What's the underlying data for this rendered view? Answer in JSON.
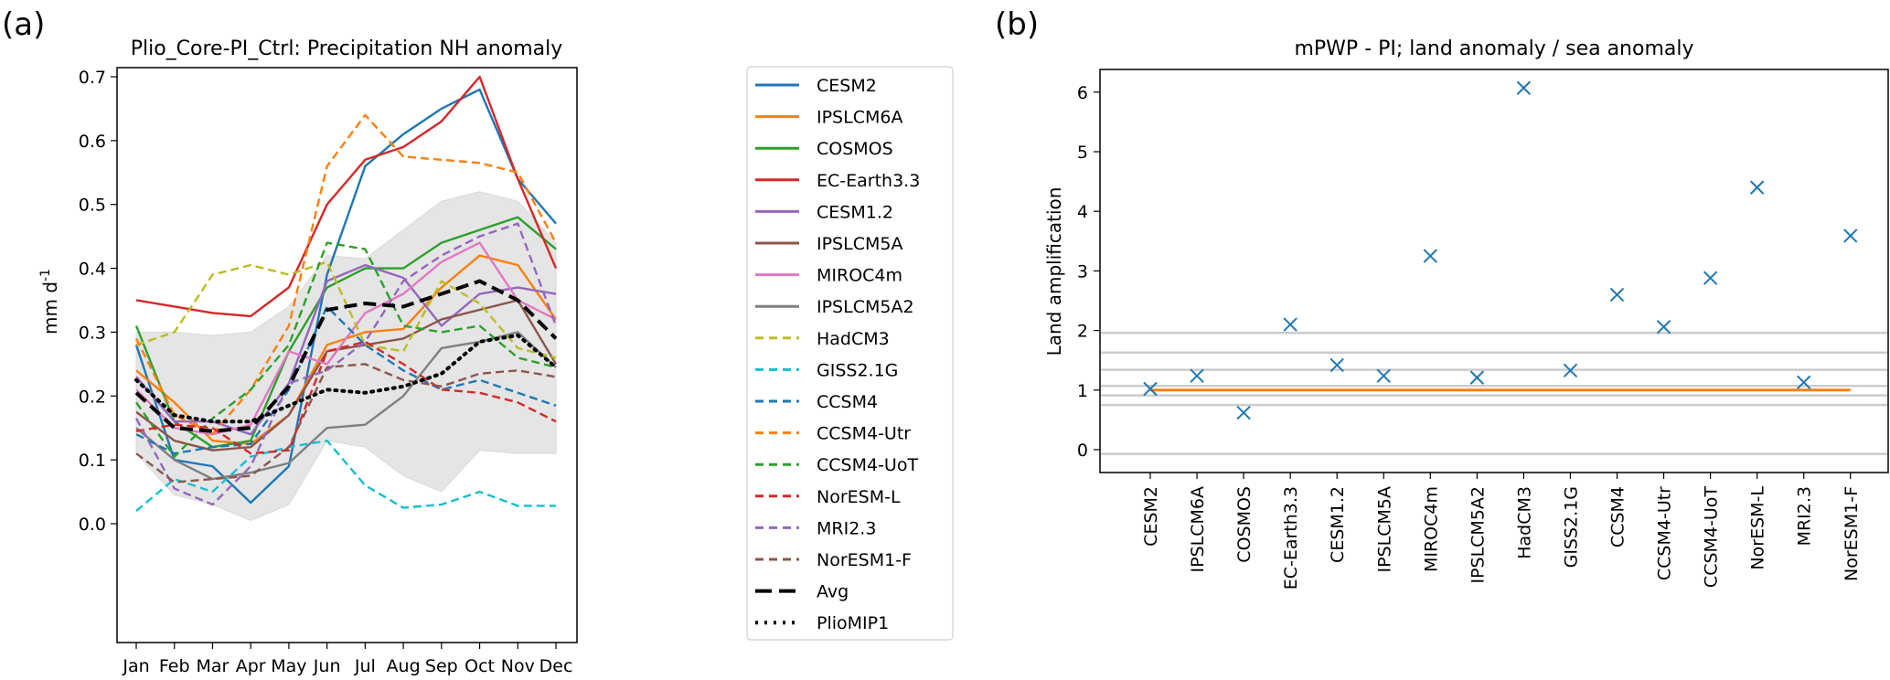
{
  "figure": {
    "panel_a_label": "(a)",
    "panel_b_label": "(b)"
  },
  "chart_data": [
    {
      "type": "line",
      "title": "Plio_Core-PI_Ctrl: Precipitation NH anomaly",
      "xlabel": "",
      "ylabel": "mm d",
      "ylabel_superscript": "-1",
      "categories": [
        "Jan",
        "Feb",
        "Mar",
        "Apr",
        "May",
        "Jun",
        "Jul",
        "Aug",
        "Sep",
        "Oct",
        "Nov",
        "Dec"
      ],
      "ylim": [
        -0.02,
        0.73
      ],
      "yticks": [
        0.0,
        0.1,
        0.2,
        0.3,
        0.4,
        0.5,
        0.6,
        0.7
      ],
      "ytick_labels": [
        "0.0",
        "0.1",
        "0.2",
        "0.3",
        "0.4",
        "0.5",
        "0.6",
        "0.7"
      ],
      "grid": false,
      "legend_position": "outside-right",
      "range_band": {
        "name": "model spread",
        "color": "#e5e5e5",
        "upper": [
          0.3,
          0.3,
          0.295,
          0.3,
          0.34,
          0.42,
          0.415,
          0.46,
          0.505,
          0.52,
          0.505,
          0.44
        ],
        "lower": [
          0.11,
          0.045,
          0.03,
          0.005,
          0.03,
          0.13,
          0.12,
          0.075,
          0.05,
          0.115,
          0.11,
          0.11
        ]
      },
      "series": [
        {
          "name": "CESM2",
          "color": "#1f77b4",
          "style": "solid",
          "values": [
            0.28,
            0.1,
            0.09,
            0.033,
            0.09,
            0.39,
            0.56,
            0.61,
            0.65,
            0.68,
            0.54,
            0.47
          ]
        },
        {
          "name": "IPSLCM6A",
          "color": "#ff7f0e",
          "style": "solid",
          "values": [
            0.24,
            0.19,
            0.13,
            0.125,
            0.17,
            0.28,
            0.3,
            0.305,
            0.37,
            0.42,
            0.405,
            0.32
          ]
        },
        {
          "name": "COSMOS",
          "color": "#2ca02c",
          "style": "solid",
          "values": [
            0.31,
            0.16,
            0.12,
            0.13,
            0.27,
            0.37,
            0.4,
            0.4,
            0.44,
            0.46,
            0.48,
            0.43
          ]
        },
        {
          "name": "EC-Earth3.3",
          "color": "#d62728",
          "style": "solid",
          "values": [
            0.35,
            0.34,
            0.33,
            0.325,
            0.37,
            0.5,
            0.57,
            0.59,
            0.63,
            0.7,
            0.54,
            0.4
          ]
        },
        {
          "name": "CESM1.2",
          "color": "#9467bd",
          "style": "solid",
          "values": [
            0.23,
            0.16,
            0.16,
            0.14,
            0.22,
            0.38,
            0.405,
            0.385,
            0.31,
            0.36,
            0.37,
            0.36
          ]
        },
        {
          "name": "IPSLCM5A",
          "color": "#8c564b",
          "style": "solid",
          "values": [
            0.175,
            0.13,
            0.115,
            0.12,
            0.17,
            0.27,
            0.28,
            0.29,
            0.32,
            0.335,
            0.35,
            0.25
          ]
        },
        {
          "name": "MIROC4m",
          "color": "#e377c2",
          "style": "solid",
          "values": [
            0.21,
            0.15,
            0.14,
            0.155,
            0.27,
            0.25,
            0.33,
            0.36,
            0.41,
            0.44,
            0.35,
            0.32
          ]
        },
        {
          "name": "IPSLCM5A2",
          "color": "#7f7f7f",
          "style": "solid",
          "values": [
            0.15,
            0.1,
            0.07,
            0.08,
            0.095,
            0.15,
            0.155,
            0.2,
            0.275,
            0.285,
            0.3,
            0.245
          ]
        },
        {
          "name": "HadCM3",
          "color": "#bcbd22",
          "style": "dashed",
          "values": [
            0.28,
            0.3,
            0.39,
            0.405,
            0.39,
            0.41,
            0.28,
            0.27,
            0.38,
            0.345,
            0.275,
            0.26
          ]
        },
        {
          "name": "GISS2.1G",
          "color": "#17becf",
          "style": "dashed",
          "values": [
            0.02,
            0.07,
            0.05,
            0.105,
            0.12,
            0.13,
            0.06,
            0.025,
            0.03,
            0.05,
            0.028,
            0.028
          ]
        },
        {
          "name": "CCSM4",
          "color": "#1f77b4",
          "style": "dashed",
          "values": [
            0.14,
            0.11,
            0.12,
            0.125,
            0.21,
            0.34,
            0.28,
            0.24,
            0.21,
            0.225,
            0.205,
            0.185
          ]
        },
        {
          "name": "CCSM4-Utr",
          "color": "#ff7f0e",
          "style": "dashed",
          "values": [
            0.29,
            0.17,
            0.14,
            0.21,
            0.31,
            0.56,
            0.64,
            0.575,
            0.57,
            0.565,
            0.55,
            0.44
          ]
        },
        {
          "name": "CCSM4-UoT",
          "color": "#2ca02c",
          "style": "dashed",
          "values": [
            0.19,
            0.105,
            0.165,
            0.21,
            0.28,
            0.44,
            0.43,
            0.31,
            0.3,
            0.31,
            0.26,
            0.245
          ]
        },
        {
          "name": "NorESM-L",
          "color": "#d62728",
          "style": "dashed",
          "values": [
            0.145,
            0.155,
            0.15,
            0.11,
            0.115,
            0.27,
            0.285,
            0.25,
            0.21,
            0.205,
            0.19,
            0.16
          ]
        },
        {
          "name": "MRI2.3",
          "color": "#9467bd",
          "style": "dashed",
          "values": [
            0.165,
            0.055,
            0.03,
            0.09,
            0.22,
            0.24,
            0.285,
            0.38,
            0.42,
            0.45,
            0.47,
            0.31
          ]
        },
        {
          "name": "NorESM1-F",
          "color": "#8c564b",
          "style": "dashed",
          "values": [
            0.11,
            0.065,
            0.07,
            0.075,
            0.12,
            0.245,
            0.25,
            0.225,
            0.215,
            0.235,
            0.24,
            0.23
          ]
        },
        {
          "name": "Avg",
          "color": "#000000",
          "style": "thick-dashed",
          "values": [
            0.205,
            0.15,
            0.145,
            0.15,
            0.215,
            0.335,
            0.345,
            0.34,
            0.36,
            0.38,
            0.35,
            0.29
          ]
        },
        {
          "name": "PlioMIP1",
          "color": "#000000",
          "style": "dotted",
          "values": [
            0.225,
            0.17,
            0.16,
            0.16,
            0.185,
            0.21,
            0.205,
            0.215,
            0.235,
            0.285,
            0.295,
            0.245
          ]
        }
      ]
    },
    {
      "type": "scatter",
      "title": "mPWP - PI; land anomaly / sea anomaly",
      "xlabel": "",
      "ylabel": "Land amplification",
      "categories": [
        "CESM2",
        "IPSLCM6A",
        "COSMOS",
        "EC-Earth3.3",
        "CESM1.2",
        "IPSLCM5A",
        "MIROC4m",
        "IPSLCM5A2",
        "HadCM3",
        "GISS2.1G",
        "CCSM4",
        "CCSM4-Utr",
        "CCSM4-UoT",
        "NorESM-L",
        "MRI2.3",
        "NorESM1-F"
      ],
      "values": [
        1.02,
        1.24,
        0.62,
        2.1,
        1.42,
        1.24,
        3.25,
        1.21,
        6.07,
        1.33,
        2.6,
        2.06,
        2.88,
        4.4,
        1.13,
        3.59
      ],
      "marker": "x",
      "marker_color": "#1f77b4",
      "ylim": [
        -0.4,
        6.35
      ],
      "yticks": [
        0,
        1,
        2,
        3,
        4,
        5,
        6
      ],
      "ytick_labels": [
        "0",
        "1",
        "2",
        "3",
        "4",
        "5",
        "6"
      ],
      "grid": false,
      "reference_lines": {
        "color": "#cccccc",
        "values": [
          1.96,
          1.63,
          1.34,
          1.07,
          0.91,
          0.75,
          -0.07
        ]
      },
      "unity_line": {
        "value": 1.0,
        "color": "#ff7f0e"
      }
    }
  ]
}
